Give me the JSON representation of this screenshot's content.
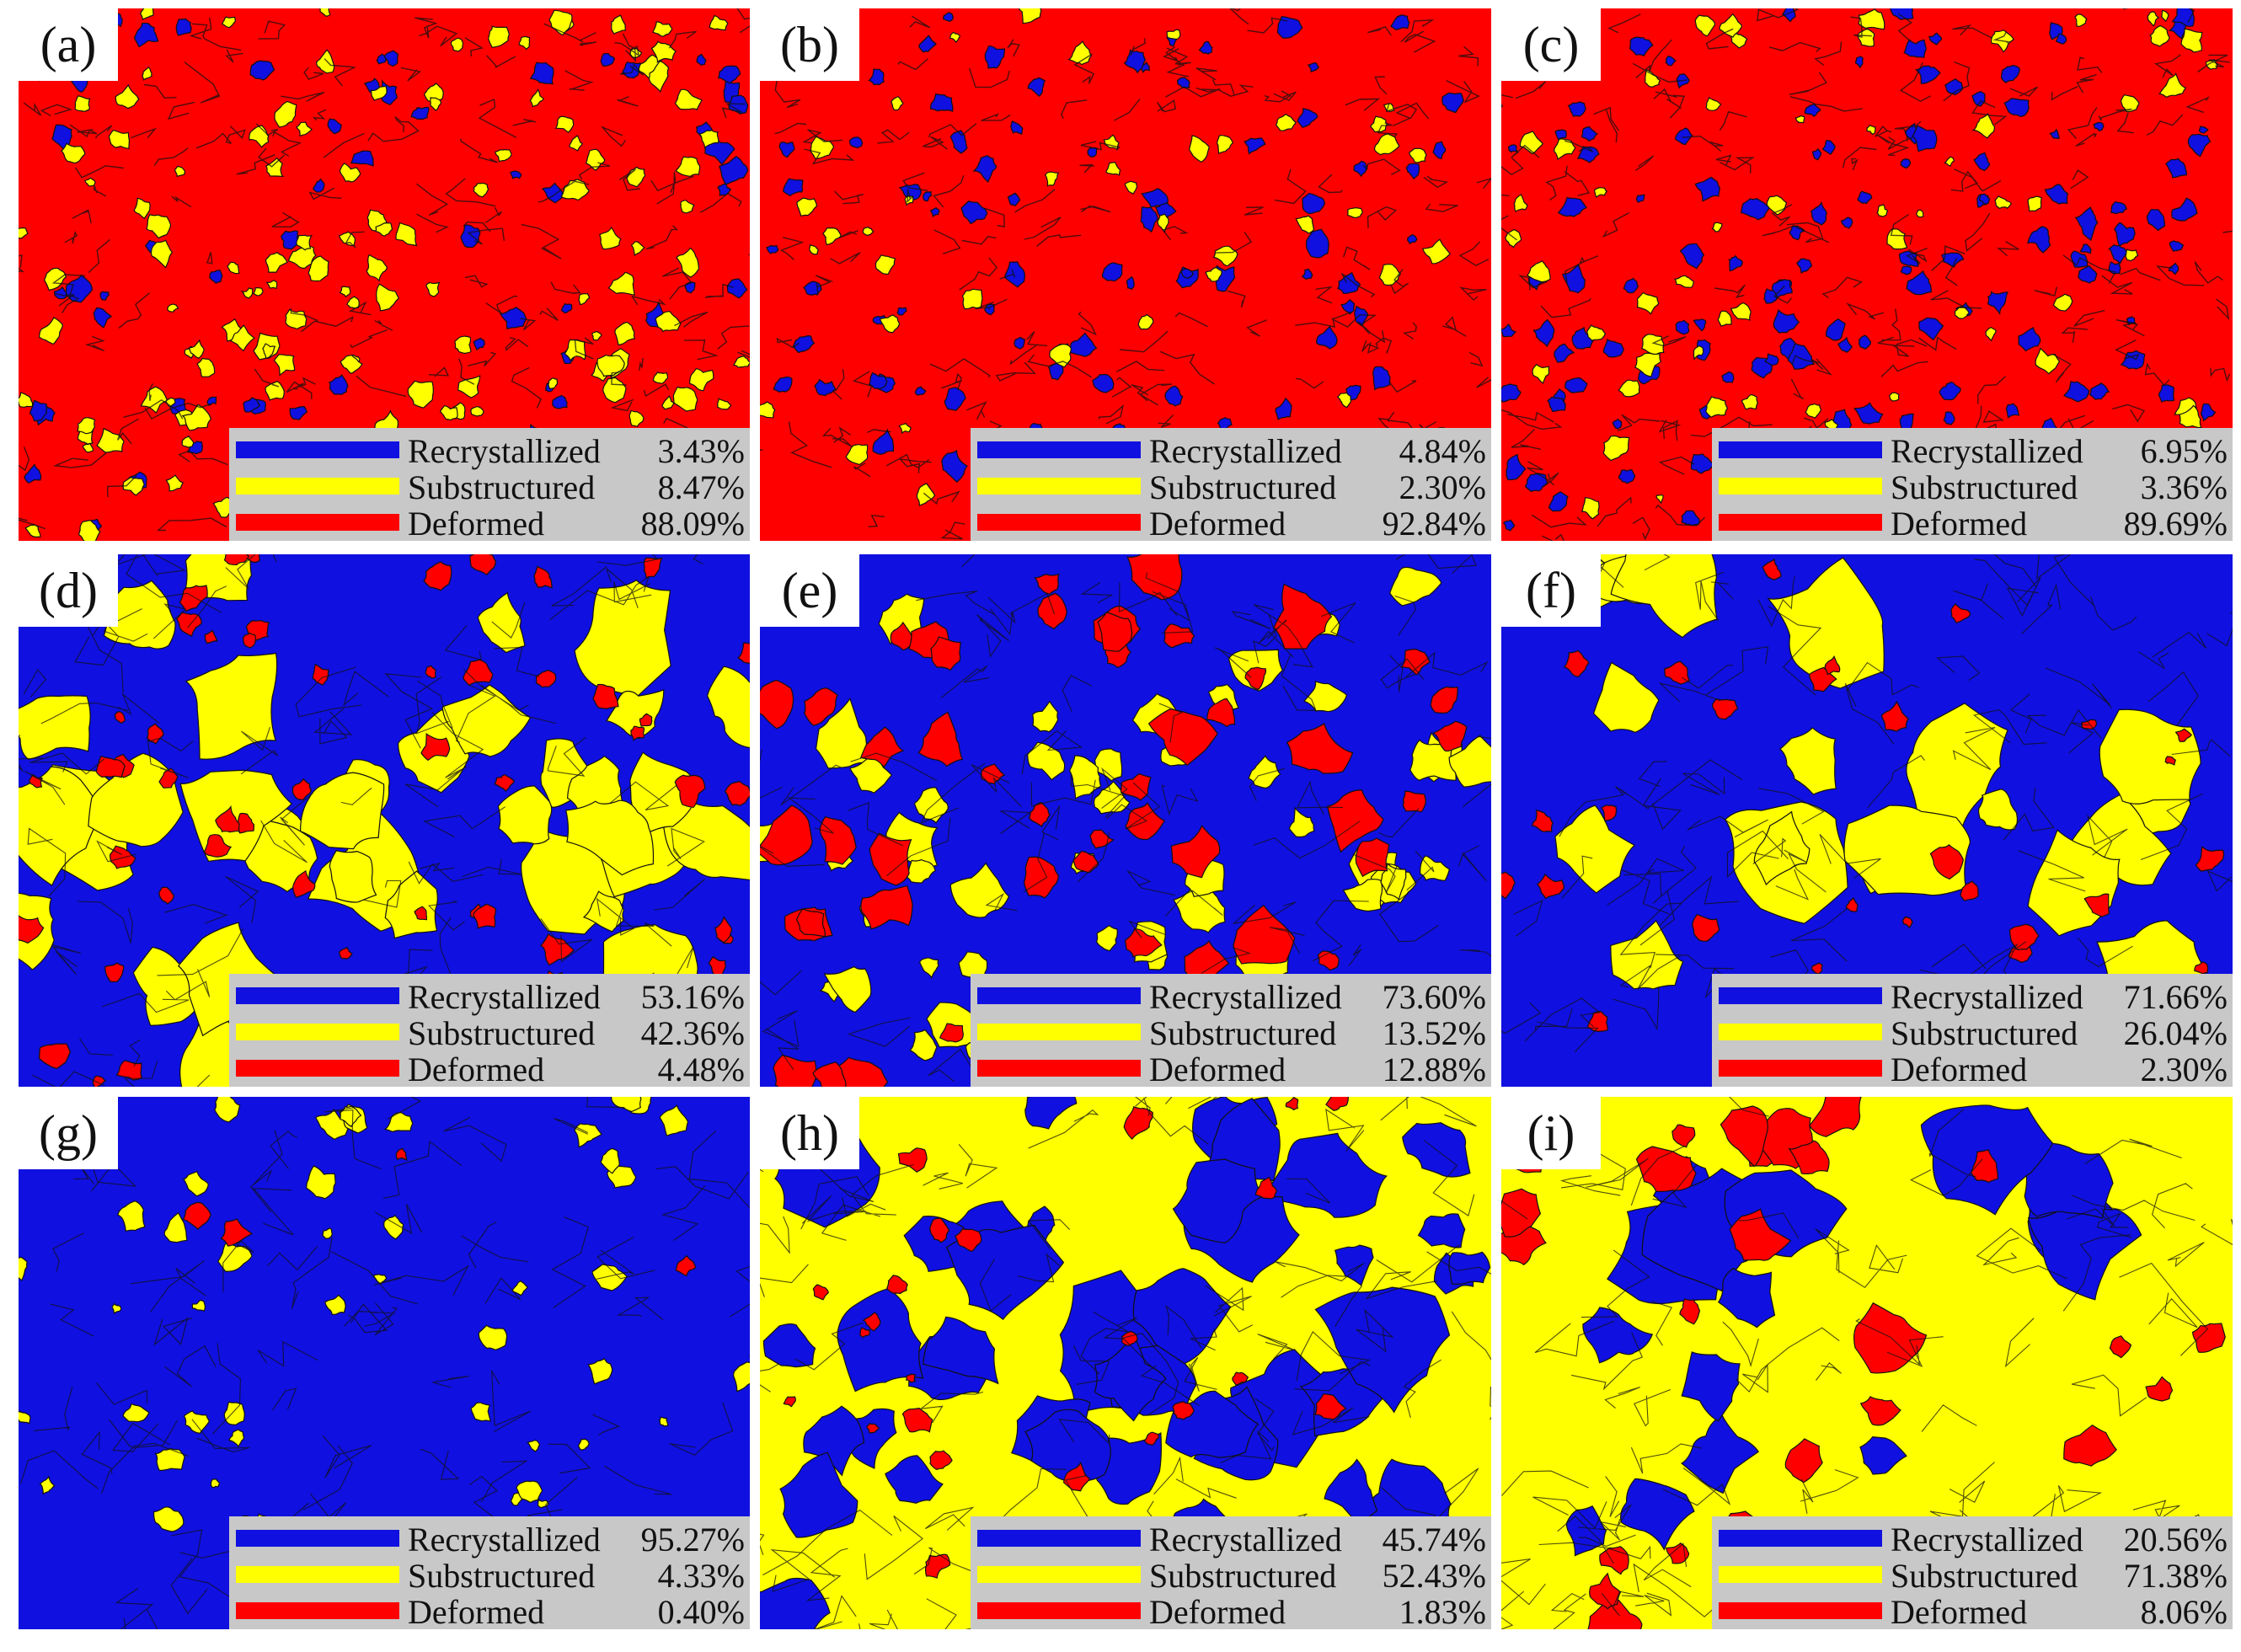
{
  "colors": {
    "recrystallized": "#1010e0",
    "substructured": "#ffff00",
    "deformed": "#ff0000",
    "boundary": "#111111",
    "legend_bg": "#c8c8c8"
  },
  "legend_labels": [
    "Recrystallized",
    "Substructured",
    "Deformed"
  ],
  "panels": [
    {
      "label": "(a)",
      "values": [
        "3.43%",
        "8.47%",
        "88.09%"
      ]
    },
    {
      "label": "(b)",
      "values": [
        "4.84%",
        "2.30%",
        "92.84%"
      ]
    },
    {
      "label": "(c)",
      "values": [
        "6.95%",
        "3.36%",
        "89.69%"
      ]
    },
    {
      "label": "(d)",
      "values": [
        "53.16%",
        "42.36%",
        "4.48%"
      ]
    },
    {
      "label": "(e)",
      "values": [
        "73.60%",
        "13.52%",
        "12.88%"
      ]
    },
    {
      "label": "(f)",
      "values": [
        "71.66%",
        "26.04%",
        "2.30%"
      ]
    },
    {
      "label": "(g)",
      "values": [
        "95.27%",
        "4.33%",
        "0.40%"
      ]
    },
    {
      "label": "(h)",
      "values": [
        "45.74%",
        "52.43%",
        "1.83%"
      ]
    },
    {
      "label": "(i)",
      "values": [
        "20.56%",
        "71.38%",
        "8.06%"
      ]
    }
  ],
  "fractions": [
    [
      0.0343,
      0.0847,
      0.8809
    ],
    [
      0.0484,
      0.023,
      0.9284
    ],
    [
      0.0695,
      0.0336,
      0.8969
    ],
    [
      0.5316,
      0.4236,
      0.0448
    ],
    [
      0.736,
      0.1352,
      0.1288
    ],
    [
      0.7166,
      0.2604,
      0.023
    ],
    [
      0.9527,
      0.0433,
      0.004
    ],
    [
      0.4574,
      0.5243,
      0.0183
    ],
    [
      0.2056,
      0.7138,
      0.0806
    ]
  ]
}
